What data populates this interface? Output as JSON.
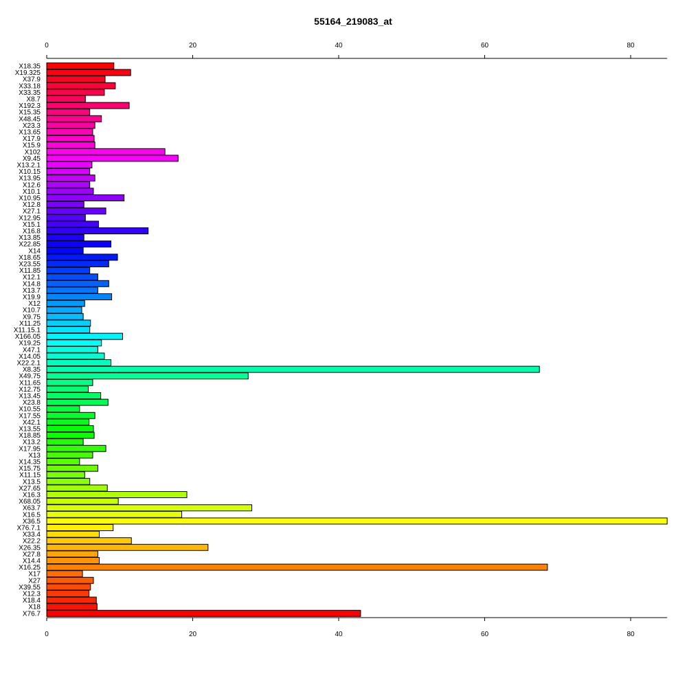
{
  "chart_data": {
    "type": "bar",
    "orientation": "horizontal",
    "title": "55164_219083_at",
    "xlabel": "",
    "ylabel": "",
    "xlim": [
      0,
      85
    ],
    "x_ticks": [
      0,
      20,
      40,
      60,
      80
    ],
    "axes": [
      "top",
      "bottom"
    ],
    "grid": false,
    "legend": "none",
    "color_scheme": "rainbow",
    "categories": [
      "X18.35",
      "X19.325",
      "X37.9",
      "X33.18",
      "X33.35",
      "X8.7",
      "X192.3",
      "X15.35",
      "X48.45",
      "X23.3",
      "X13.65",
      "X17.9",
      "X15.9",
      "X102",
      "X9.45",
      "X13.2.1",
      "X10.15",
      "X13.95",
      "X12.6",
      "X10.1",
      "X10.95",
      "X12.8",
      "X27.1",
      "X12.95",
      "X15.1",
      "X16.8",
      "X13.85",
      "X22.85",
      "X14",
      "X18.65",
      "X23.55",
      "X11.85",
      "X12.1",
      "X14.8",
      "X13.7",
      "X19.9",
      "X12",
      "X10.7",
      "X9.75",
      "X11.25",
      "X11.15.1",
      "X166.05",
      "X19.25",
      "X47.1",
      "X14.05",
      "X22.2.1",
      "X8.35",
      "X49.75",
      "X11.65",
      "X12.75",
      "X13.45",
      "X23.8",
      "X10.55",
      "X17.55",
      "X42.1",
      "X13.55",
      "X18.85",
      "X13.2",
      "X17.95",
      "X13",
      "X14.35",
      "X15.75",
      "X11.15",
      "X13.5",
      "X27.65",
      "X16.3",
      "X68.05",
      "X63.7",
      "X16.5",
      "X36.5",
      "X76.7.1",
      "X33.4",
      "X22.2",
      "X26.35",
      "X27.8",
      "X14.4",
      "X16.25",
      "X17",
      "X27",
      "X39.55",
      "X12.3",
      "X18.4",
      "X18",
      "X76.7"
    ],
    "values": [
      9.2,
      11.5,
      8.0,
      9.4,
      7.9,
      5.3,
      11.3,
      5.9,
      7.5,
      6.6,
      6.3,
      6.5,
      6.6,
      16.2,
      18.0,
      6.2,
      5.9,
      6.6,
      5.9,
      6.4,
      10.6,
      5.1,
      8.1,
      5.3,
      7.1,
      13.9,
      5.1,
      8.8,
      5.0,
      9.7,
      8.5,
      5.9,
      7.0,
      8.5,
      7.0,
      8.9,
      5.2,
      4.8,
      5.0,
      6.0,
      5.9,
      10.4,
      7.5,
      7.0,
      7.9,
      8.8,
      67.5,
      27.6,
      6.3,
      5.7,
      7.4,
      8.4,
      4.5,
      6.6,
      5.8,
      6.4,
      6.5,
      5.0,
      8.1,
      6.3,
      4.5,
      7.0,
      5.2,
      5.9,
      8.3,
      19.2,
      9.8,
      28.1,
      18.5,
      85.0,
      9.1,
      7.2,
      11.6,
      22.1,
      7.0,
      7.2,
      68.6,
      4.9,
      6.4,
      6.0,
      5.8,
      6.8,
      6.9,
      43.0
    ]
  }
}
